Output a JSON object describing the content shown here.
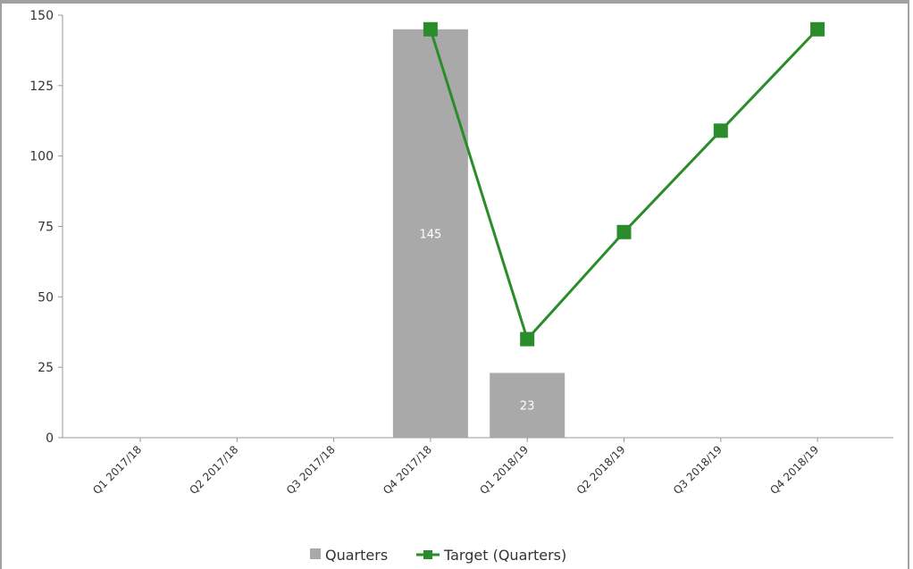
{
  "chart_data": {
    "type": "bar",
    "categories": [
      "Q1 2017/18",
      "Q2 2017/18",
      "Q3 2017/18",
      "Q4 2017/18",
      "Q1 2018/19",
      "Q2 2018/19",
      "Q3 2018/19",
      "Q4 2018/19"
    ],
    "series": [
      {
        "name": "Quarters",
        "type": "bar",
        "color": "#a9a9a9",
        "values": [
          null,
          null,
          null,
          145,
          23,
          null,
          null,
          null
        ]
      },
      {
        "name": "Target (Quarters)",
        "type": "line",
        "color": "#2a8c2a",
        "values": [
          null,
          null,
          null,
          145,
          35,
          73,
          109,
          145
        ]
      }
    ],
    "ylim": [
      0,
      150
    ],
    "yticks": [
      0,
      25,
      50,
      75,
      100,
      125,
      150
    ],
    "title": "",
    "xlabel": "",
    "ylabel": "",
    "legend_position": "bottom-center",
    "grid": false,
    "data_labels_on_bars": true
  }
}
